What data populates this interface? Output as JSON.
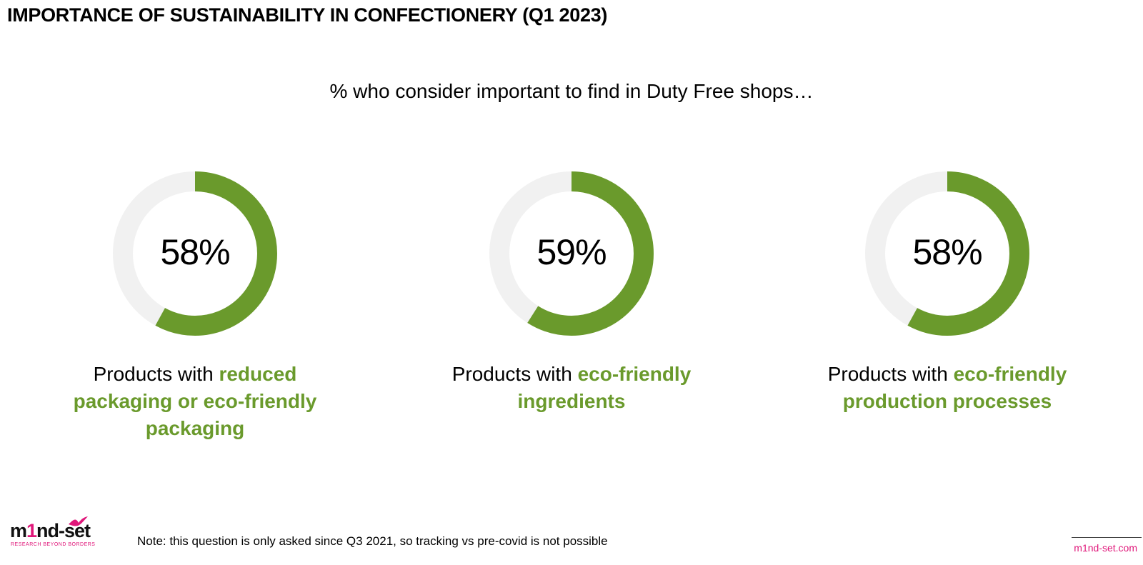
{
  "header": {
    "title": "IMPORTANCE OF SUSTAINABILITY IN CONFECTIONERY (Q1 2023)",
    "subtitle": "% who consider important to find in Duty Free shops…"
  },
  "chart_data": [
    {
      "type": "donut",
      "value": 58,
      "value_label": "58%",
      "caption_plain": "Products with ",
      "caption_highlight": "reduced packaging or eco-friendly packaging"
    },
    {
      "type": "donut",
      "value": 59,
      "value_label": "59%",
      "caption_plain": "Products with ",
      "caption_highlight": "eco-friendly ingredients"
    },
    {
      "type": "donut",
      "value": 58,
      "value_label": "58%",
      "caption_plain": "Products with ",
      "caption_highlight": "eco-friendly production processes"
    }
  ],
  "colors": {
    "accent": "#6a9a2c",
    "track": "#f1f1f1",
    "brand": "#e0177a"
  },
  "footer": {
    "note": "Note: this question is only asked since Q3 2021, so tracking vs pre-covid is not possible",
    "logo_pre": "m",
    "logo_one": "1",
    "logo_post": "nd-set",
    "logo_tagline": "RESEARCH BEYOND BORDERS",
    "site": "m1nd-set.com"
  }
}
